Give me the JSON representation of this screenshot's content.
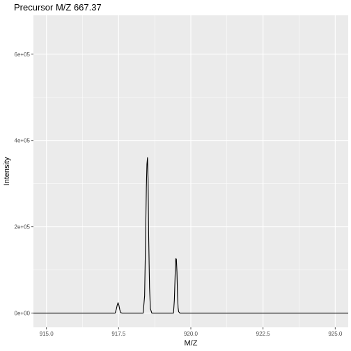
{
  "chart_data": {
    "type": "line",
    "title": "Precursor M/Z 667.37",
    "xlabel": "M/Z",
    "ylabel": "Intensity",
    "xlim": [
      914.55,
      925.45
    ],
    "ylim": [
      -33000,
      690000
    ],
    "x_ticks": [
      915.0,
      917.5,
      920.0,
      922.5,
      925.0
    ],
    "x_tick_labels": [
      "915.0",
      "917.5",
      "920.0",
      "922.5",
      "925.0"
    ],
    "y_ticks": [
      0,
      200000,
      400000,
      600000
    ],
    "y_tick_labels": [
      "0e+00",
      "2e+05",
      "4e+05",
      "6e+05"
    ],
    "grid": true,
    "series": [
      {
        "color": "#000000",
        "x": [
          914.55,
          917.38,
          917.42,
          917.45,
          917.48,
          917.51,
          917.54,
          917.57,
          917.62,
          918.35,
          918.4,
          918.43,
          918.46,
          918.48,
          918.5,
          918.52,
          918.54,
          918.57,
          918.6,
          918.65,
          919.4,
          919.43,
          919.46,
          919.48,
          919.5,
          919.52,
          919.54,
          919.56,
          919.58,
          919.62,
          925.45
        ],
        "y": [
          0,
          0,
          9000,
          18000,
          24000,
          18000,
          8000,
          1000,
          0,
          0,
          40000,
          160000,
          290000,
          345000,
          360000,
          310000,
          180000,
          60000,
          10000,
          0,
          0,
          30000,
          95000,
          126000,
          125000,
          95000,
          40000,
          12000,
          3000,
          0,
          0
        ]
      }
    ],
    "style": {
      "panel_background": "#ebebeb",
      "grid_color": "#ffffff",
      "tick_color": "#4d4d4d",
      "line_color": "#000000"
    }
  }
}
